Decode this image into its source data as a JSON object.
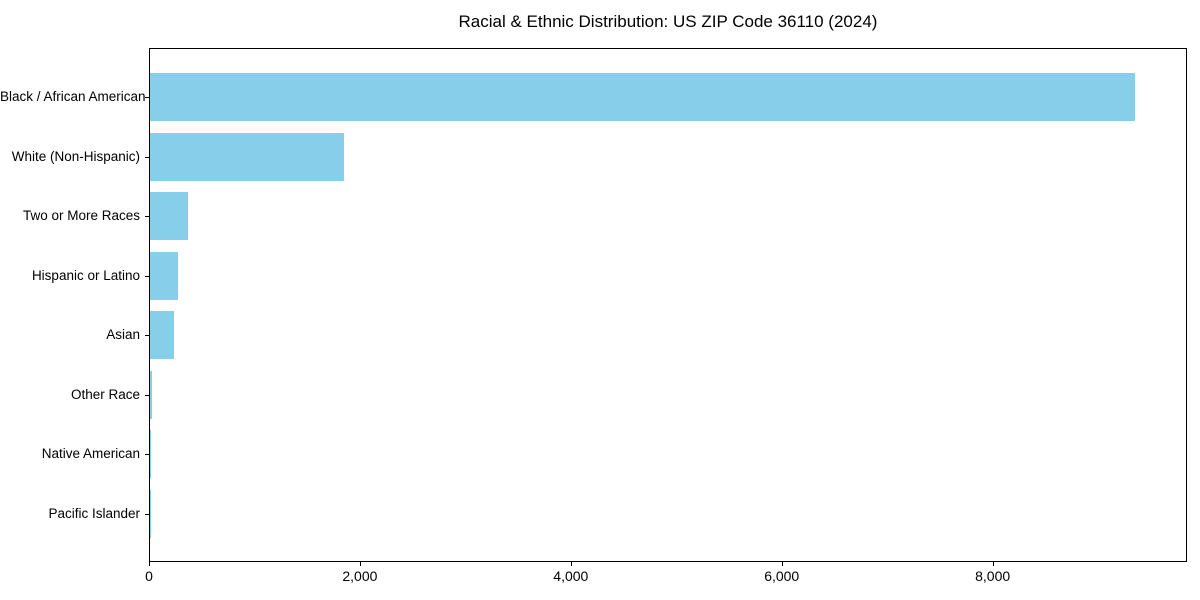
{
  "chart_data": {
    "type": "bar",
    "orientation": "horizontal",
    "title": "Racial & Ethnic Distribution: US ZIP Code 36110 (2024)",
    "xlabel": "",
    "ylabel": "",
    "categories": [
      "Black / African American",
      "White (Non-Hispanic)",
      "Two or More Races",
      "Hispanic or Latino",
      "Asian",
      "Other Race",
      "Native American",
      "Pacific Islander"
    ],
    "values": [
      9360,
      1840,
      360,
      265,
      230,
      15,
      8,
      4
    ],
    "xlim": [
      0,
      9843
    ],
    "x_ticks": [
      0,
      2000,
      4000,
      6000,
      8000
    ],
    "x_tick_labels": [
      "0",
      "2,000",
      "4,000",
      "6,000",
      "8,000"
    ],
    "bar_color": "#87CEEB",
    "grid": false,
    "legend": false
  }
}
